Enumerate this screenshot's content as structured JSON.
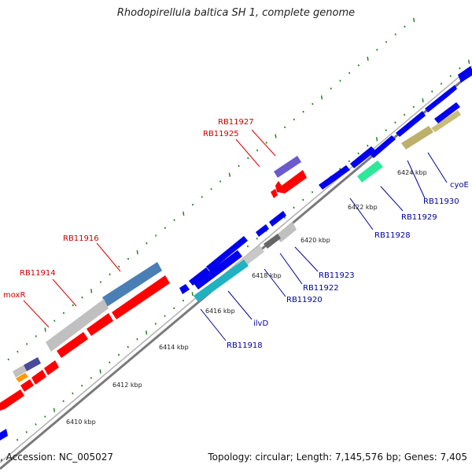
{
  "title": "Rhodopirellula baltica SH 1, complete genome",
  "footer": {
    "accession": ", Accession: NC_005027",
    "summary": "Topology: circular; Length: 7,145,576 bp; Genes: 7,405"
  },
  "ticks": [
    {
      "label": "6410 kbp"
    },
    {
      "label": "6412 kbp"
    },
    {
      "label": "6414 kbp"
    },
    {
      "label": "6416 kbp"
    },
    {
      "label": "6418 kbp"
    },
    {
      "label": "6420 kbp"
    },
    {
      "label": "6422 kbp"
    },
    {
      "label": "6424 kbp"
    }
  ],
  "labels_red": [
    {
      "text": "RB11927"
    },
    {
      "text": "RB11925"
    },
    {
      "text": "RB11916"
    },
    {
      "text": "RB11914"
    },
    {
      "text": "moxR"
    }
  ],
  "labels_blue": [
    {
      "text": "cyoE"
    },
    {
      "text": "RB11930"
    },
    {
      "text": "RB11929"
    },
    {
      "text": "RB11928"
    },
    {
      "text": "RB11923"
    },
    {
      "text": "RB11922"
    },
    {
      "text": "RB11920"
    },
    {
      "text": "ilvD"
    },
    {
      "text": "RB11918"
    }
  ],
  "colors": {
    "forward_strand": "#ff0000",
    "reverse_strand": "#0000ee",
    "backbone": "#808080",
    "tick_dots": "#1a7a1a",
    "label_red": "#cc0000",
    "label_blue": "#000099"
  }
}
